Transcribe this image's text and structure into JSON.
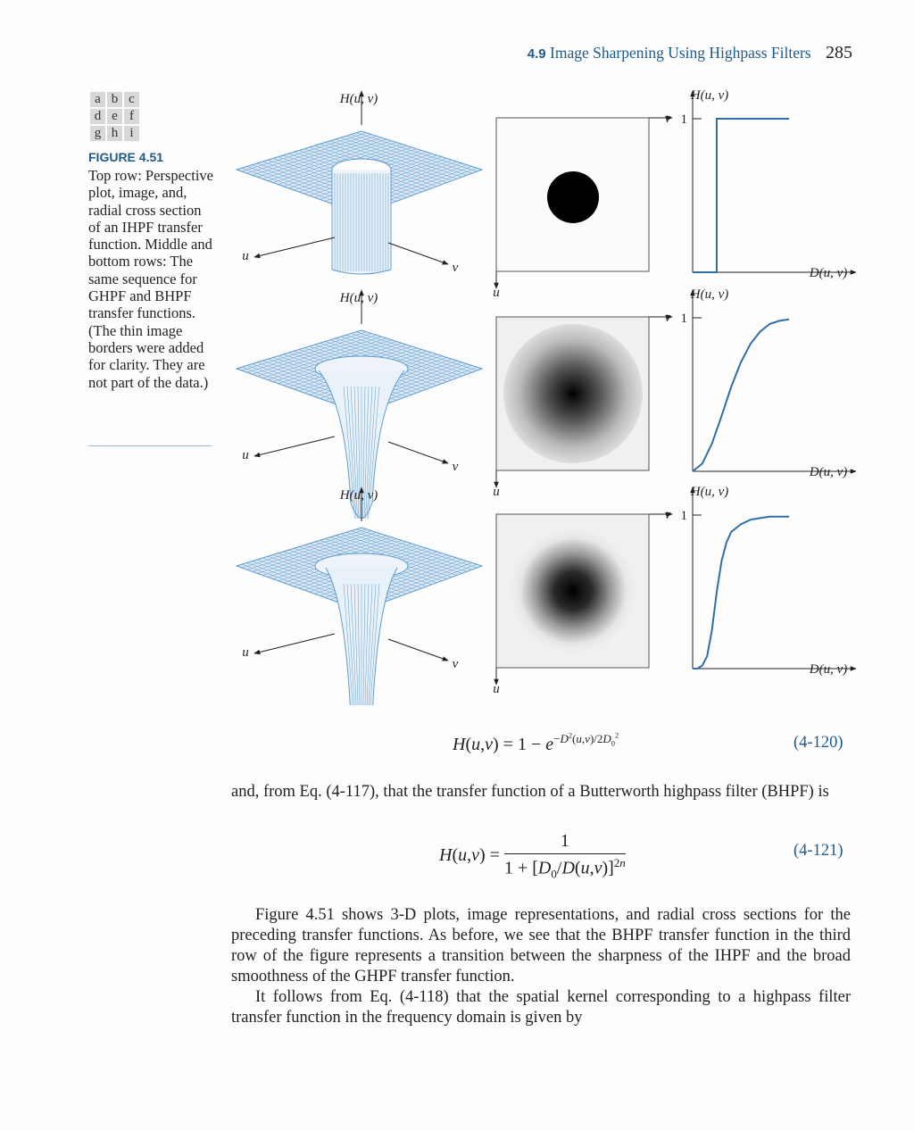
{
  "header": {
    "section": "4.9",
    "title": "Image Sharpening Using Highpass Filters",
    "page": "285"
  },
  "panel_key": [
    [
      "a",
      "b",
      "c"
    ],
    [
      "d",
      "e",
      "f"
    ],
    [
      "g",
      "h",
      "i"
    ]
  ],
  "figure": {
    "label": "FIGURE 4.51",
    "caption": "Top row: Perspective plot, image, and, radial cross section of an IHPF transfer function. Middle and bottom rows: The same sequence for GHPF and BHPF transfer functions. (The thin image borders were added for clarity. They are not part of the data.)",
    "axis_labels": {
      "H": "H(u, v)",
      "u": "u",
      "v": "v",
      "D": "D(u, v)",
      "one": "1"
    }
  },
  "chart_data": [
    {
      "type": "line",
      "title": "",
      "name": "IHPF radial cross section",
      "xlabel": "D(u, v)",
      "ylabel": "H(u, v)",
      "ylim": [
        0,
        1
      ],
      "x": [
        0,
        0.25,
        0.25,
        1.0
      ],
      "y": [
        0,
        0,
        1,
        1
      ]
    },
    {
      "type": "line",
      "title": "",
      "name": "GHPF radial cross section",
      "xlabel": "D(u, v)",
      "ylabel": "H(u, v)",
      "ylim": [
        0,
        1
      ],
      "x": [
        0.0,
        0.1,
        0.2,
        0.3,
        0.4,
        0.5,
        0.6,
        0.7,
        0.8,
        0.9,
        1.0
      ],
      "y": [
        0.0,
        0.05,
        0.18,
        0.36,
        0.55,
        0.71,
        0.83,
        0.91,
        0.96,
        0.98,
        0.99
      ]
    },
    {
      "type": "line",
      "title": "",
      "name": "BHPF radial cross section",
      "xlabel": "D(u, v)",
      "ylabel": "H(u, v)",
      "ylim": [
        0,
        1
      ],
      "x": [
        0.0,
        0.05,
        0.1,
        0.15,
        0.2,
        0.25,
        0.3,
        0.35,
        0.4,
        0.5,
        0.6,
        0.7,
        0.8,
        0.9,
        1.0
      ],
      "y": [
        0.0,
        0.0,
        0.02,
        0.08,
        0.25,
        0.5,
        0.7,
        0.82,
        0.89,
        0.94,
        0.97,
        0.98,
        0.99,
        0.99,
        0.99
      ]
    }
  ],
  "equations": {
    "eq120": {
      "number": "(4-120)"
    },
    "eq121": {
      "number": "(4-121)"
    }
  },
  "text": {
    "para1": "and, from Eq. (4-117), that the transfer function of a Butterworth highpass filter (BHPF) is",
    "para2": "Figure 4.51 shows 3-D plots, image representations, and radial cross sections for the preceding transfer functions. As before, we see that the BHPF transfer function in the third row of the figure represents a transition between the sharpness of the IHPF and the broad smoothness of the GHPF transfer function.",
    "para3": "It follows from Eq. (4-118) that the spatial kernel corresponding to a highpass filter transfer function in the frequency domain is given by"
  }
}
